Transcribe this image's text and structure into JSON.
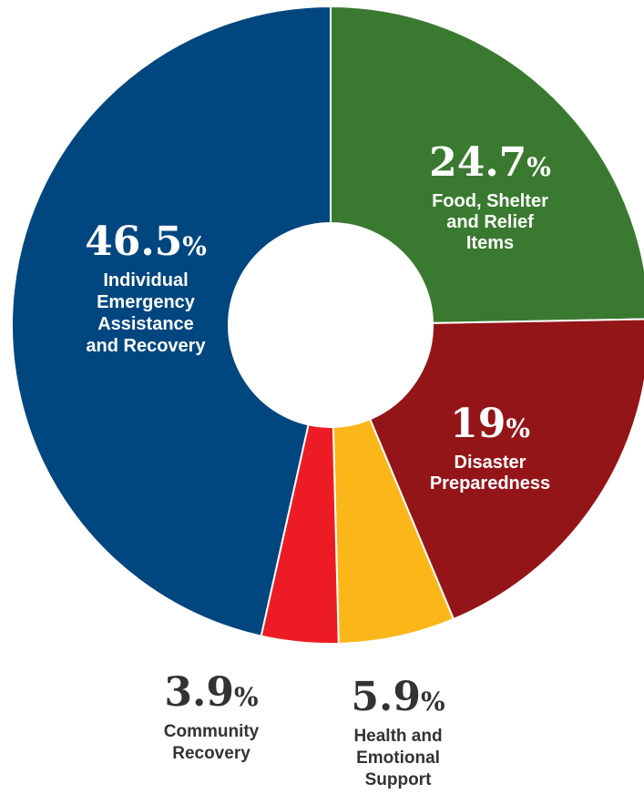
{
  "chart_data": {
    "type": "pie",
    "variant": "donut",
    "title": "",
    "categories": [
      "Food, Shelter and Relief Items",
      "Disaster Preparedness",
      "Health and Emotional Support",
      "Community Recovery",
      "Individual Emergency Assistance and Recovery"
    ],
    "values": [
      24.7,
      19,
      5.9,
      3.9,
      46.5
    ],
    "unit": "%",
    "slices": [
      {
        "value": 24.7,
        "value_label": "24.7",
        "label_lines": [
          "Food, Shelter",
          "and Relief",
          "Items"
        ],
        "color": "#3a7a30",
        "text_color": "#ffffff",
        "label_position": "inside"
      },
      {
        "value": 19,
        "value_label": "19",
        "label_lines": [
          "Disaster",
          "Preparedness"
        ],
        "color": "#941518",
        "text_color": "#ffffff",
        "label_position": "inside"
      },
      {
        "value": 5.9,
        "value_label": "5.9",
        "label_lines": [
          "Health and",
          "Emotional",
          "Support"
        ],
        "color": "#fbb719",
        "text_color": "#333333",
        "label_position": "outside"
      },
      {
        "value": 3.9,
        "value_label": "3.9",
        "label_lines": [
          "Community",
          "Recovery"
        ],
        "color": "#ed1c24",
        "text_color": "#333333",
        "label_position": "outside"
      },
      {
        "value": 46.5,
        "value_label": "46.5",
        "label_lines": [
          "Individual",
          "Emergency",
          "Assistance",
          "and Recovery"
        ],
        "color": "#00467f",
        "text_color": "#ffffff",
        "label_position": "inside"
      }
    ],
    "start_angle_deg": 0,
    "direction": "clockwise",
    "legend": "none",
    "grid": false
  }
}
